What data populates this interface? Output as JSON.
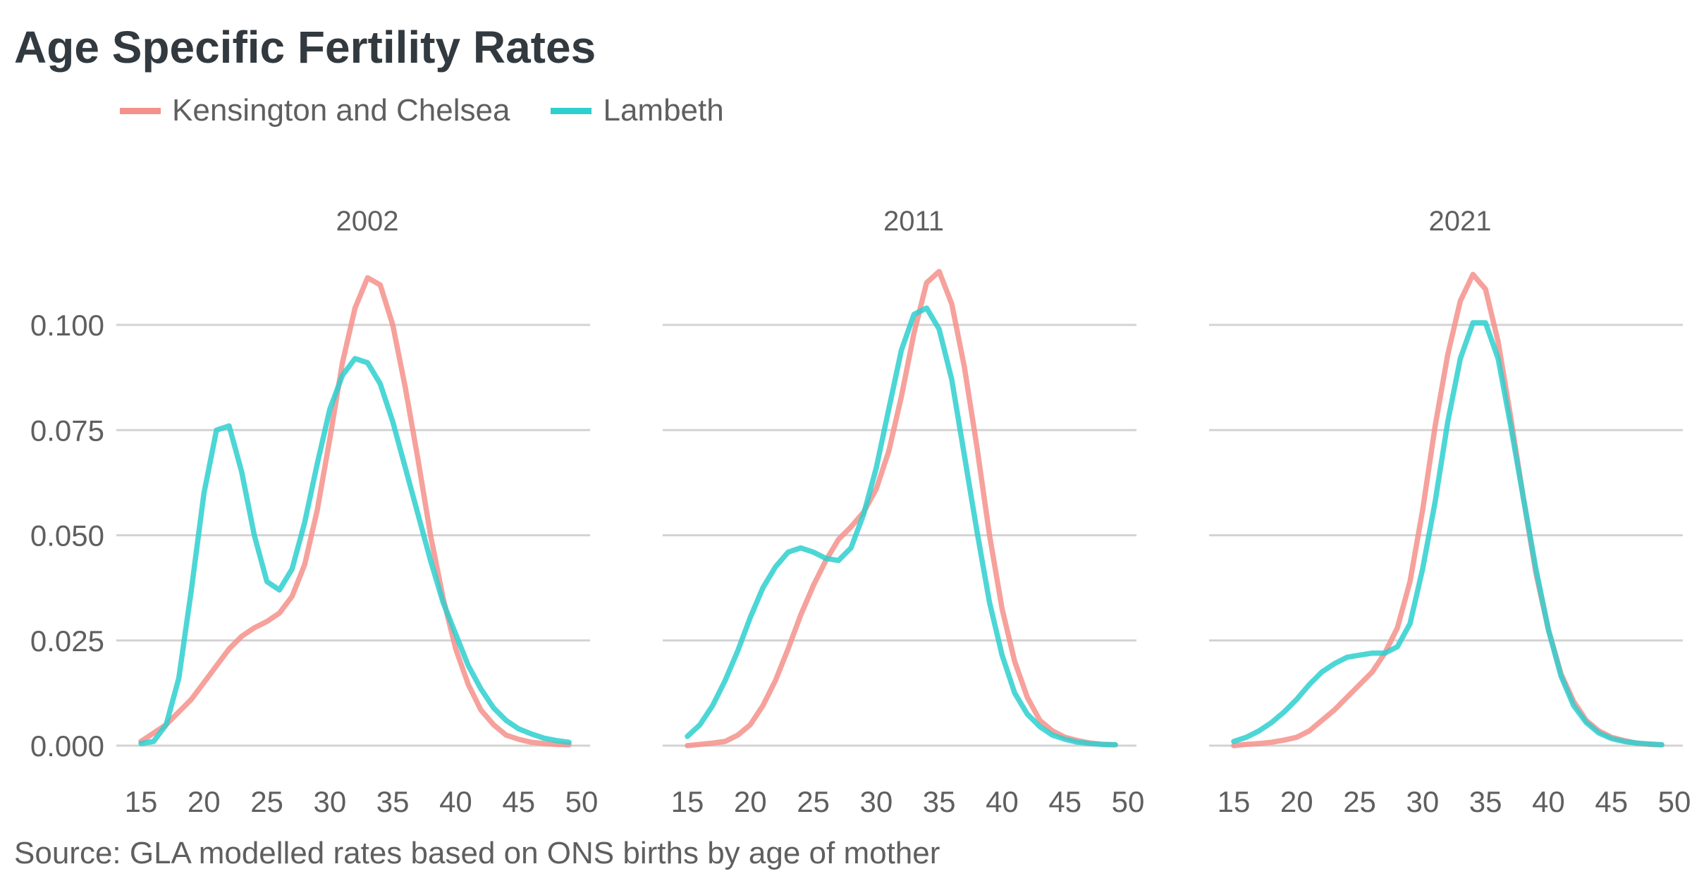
{
  "title": "Age Specific Fertility Rates",
  "source": "Source: GLA modelled rates based on ONS births by age of mother",
  "colors": {
    "kensington": "#f4918b",
    "lambeth": "#2ecfcf",
    "grid": "#d3d3d3",
    "text": "#5f5f5f",
    "title": "#323a40"
  },
  "legend": [
    {
      "name": "Kensington and Chelsea",
      "color": "#f4918b"
    },
    {
      "name": "Lambeth",
      "color": "#2ecfcf"
    }
  ],
  "chart_data": {
    "type": "line",
    "xlim": [
      15,
      50
    ],
    "ylim": [
      0,
      0.1
    ],
    "x_ticks": [
      "15",
      "20",
      "25",
      "30",
      "35",
      "40",
      "45",
      "50"
    ],
    "y_ticks": [
      "0.000",
      "0.025",
      "0.050",
      "0.075",
      "0.100"
    ],
    "grid": "horizontal",
    "legend_position": "top-left",
    "x": [
      15,
      16,
      17,
      18,
      19,
      20,
      21,
      22,
      23,
      24,
      25,
      26,
      27,
      28,
      29,
      30,
      31,
      32,
      33,
      34,
      35,
      36,
      37,
      38,
      39,
      40,
      41,
      42,
      43,
      44,
      45,
      46,
      47,
      48,
      49
    ],
    "panels": [
      {
        "title": "2002",
        "series": [
          {
            "name": "Kensington and Chelsea",
            "values": [
              0.001,
              0.003,
              0.005,
              0.008,
              0.011,
              0.015,
              0.019,
              0.023,
              0.026,
              0.028,
              0.0295,
              0.0315,
              0.0355,
              0.043,
              0.056,
              0.073,
              0.091,
              0.104,
              0.1112,
              0.1095,
              0.1,
              0.085,
              0.068,
              0.05,
              0.035,
              0.023,
              0.0145,
              0.0085,
              0.005,
              0.0025,
              0.0015,
              0.0008,
              0.0005,
              0.0003,
              0.0002
            ]
          },
          {
            "name": "Lambeth",
            "values": [
              0.0005,
              0.001,
              0.005,
              0.016,
              0.037,
              0.06,
              0.075,
              0.076,
              0.065,
              0.05,
              0.039,
              0.037,
              0.042,
              0.053,
              0.067,
              0.08,
              0.088,
              0.092,
              0.091,
              0.086,
              0.077,
              0.066,
              0.055,
              0.044,
              0.034,
              0.0265,
              0.019,
              0.0135,
              0.009,
              0.006,
              0.004,
              0.0028,
              0.0018,
              0.0012,
              0.0008
            ]
          }
        ]
      },
      {
        "title": "2011",
        "series": [
          {
            "name": "Kensington and Chelsea",
            "values": [
              0,
              0.0003,
              0.0006,
              0.001,
              0.0025,
              0.005,
              0.0095,
              0.0155,
              0.023,
              0.031,
              0.038,
              0.044,
              0.049,
              0.052,
              0.0555,
              0.061,
              0.07,
              0.083,
              0.098,
              0.11,
              0.1127,
              0.105,
              0.09,
              0.071,
              0.05,
              0.0325,
              0.02,
              0.0115,
              0.006,
              0.0035,
              0.002,
              0.0012,
              0.0006,
              0.0003,
              0.0002
            ]
          },
          {
            "name": "Lambeth",
            "values": [
              0.0022,
              0.005,
              0.0095,
              0.0155,
              0.0225,
              0.0305,
              0.0375,
              0.0425,
              0.046,
              0.047,
              0.046,
              0.0445,
              0.044,
              0.047,
              0.055,
              0.066,
              0.08,
              0.094,
              0.1025,
              0.104,
              0.099,
              0.087,
              0.069,
              0.051,
              0.034,
              0.0215,
              0.0125,
              0.0075,
              0.0045,
              0.0025,
              0.0015,
              0.0008,
              0.0005,
              0.0003,
              0.0002
            ]
          }
        ]
      },
      {
        "title": "2021",
        "series": [
          {
            "name": "Kensington and Chelsea",
            "values": [
              0,
              0.0003,
              0.0005,
              0.0008,
              0.0013,
              0.002,
              0.0035,
              0.006,
              0.0085,
              0.0115,
              0.0145,
              0.0175,
              0.022,
              0.028,
              0.039,
              0.056,
              0.076,
              0.093,
              0.1057,
              0.112,
              0.1085,
              0.096,
              0.078,
              0.059,
              0.041,
              0.0275,
              0.017,
              0.0105,
              0.006,
              0.0035,
              0.002,
              0.0012,
              0.0006,
              0.0003,
              0.0002
            ]
          },
          {
            "name": "Lambeth",
            "values": [
              0.001,
              0.002,
              0.0035,
              0.0055,
              0.008,
              0.011,
              0.0145,
              0.0175,
              0.0195,
              0.021,
              0.0215,
              0.022,
              0.022,
              0.0235,
              0.029,
              0.042,
              0.058,
              0.077,
              0.092,
              0.1005,
              0.1005,
              0.092,
              0.076,
              0.059,
              0.042,
              0.0275,
              0.0165,
              0.0095,
              0.0055,
              0.003,
              0.0017,
              0.001,
              0.0006,
              0.0004,
              0.0002
            ]
          }
        ]
      }
    ]
  }
}
